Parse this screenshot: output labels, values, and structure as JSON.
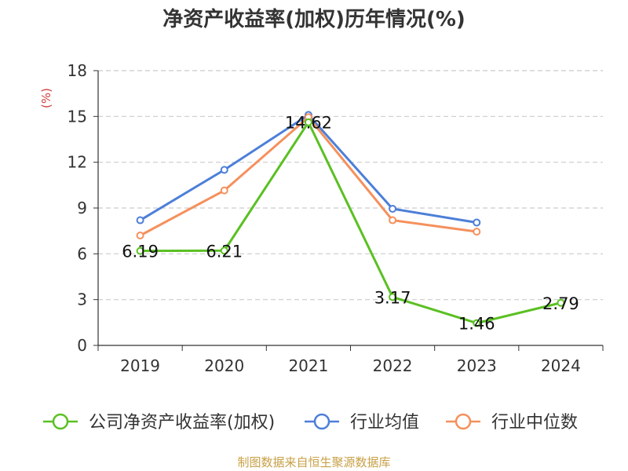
{
  "chart_data": {
    "type": "line",
    "title": "净资产收益率(加权)历年情况(%)",
    "ylabel": "(%)",
    "xlabel": "",
    "categories": [
      "2019",
      "2020",
      "2021",
      "2022",
      "2023",
      "2024"
    ],
    "ylim": [
      0,
      18
    ],
    "yticks": [
      0,
      3,
      6,
      9,
      12,
      15,
      18
    ],
    "grid": true,
    "legend_position": "bottom",
    "series": [
      {
        "name": "公司净资产收益率(加权)",
        "color": "#5ac022",
        "values": [
          6.19,
          6.21,
          14.62,
          3.17,
          1.46,
          2.79
        ],
        "labels": [
          "6.19",
          "6.21",
          "14.62",
          "3.17",
          "1.46",
          "2.79"
        ]
      },
      {
        "name": "行业均值",
        "color": "#4d7fd8",
        "values": [
          8.2,
          11.5,
          15.1,
          8.95,
          8.05,
          null
        ]
      },
      {
        "name": "行业中位数",
        "color": "#f5905c",
        "values": [
          7.2,
          10.15,
          14.95,
          8.2,
          7.45,
          null
        ]
      }
    ]
  },
  "footer": {
    "source": "制图数据来自恒生聚源数据库"
  }
}
